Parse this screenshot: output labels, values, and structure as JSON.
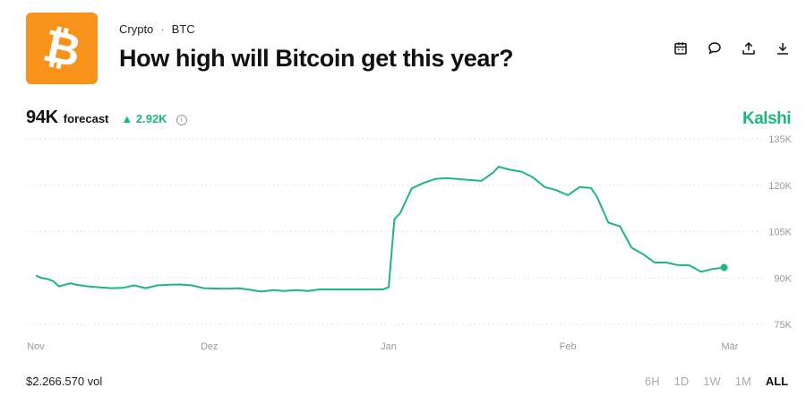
{
  "header": {
    "category": "Crypto",
    "separator": "·",
    "ticker": "BTC",
    "title": "How high will Bitcoin get this year?",
    "logo_glyph": "₿",
    "logo_color": "#F7931A"
  },
  "toolbar": {
    "icons": [
      "calendar-icon",
      "comment-icon",
      "share-icon",
      "download-icon"
    ]
  },
  "forecast": {
    "value": "94K",
    "label": "forecast",
    "delta_arrow": "▲",
    "delta": "2.92K",
    "info_glyph": "i"
  },
  "brand": "Kalshi",
  "accent_color": "#1DB879",
  "footer": {
    "volume": "$2.266.570 vol",
    "ranges": [
      "6H",
      "1D",
      "1W",
      "1M",
      "ALL"
    ],
    "active_range": "ALL"
  },
  "chart_data": {
    "type": "line",
    "title": "",
    "xlabel": "",
    "ylabel": "",
    "y_axis_side": "right",
    "grid": true,
    "grid_style": "dotted",
    "ylim": [
      75000,
      135000
    ],
    "yticks": [
      75000,
      90000,
      105000,
      120000,
      135000
    ],
    "ytick_labels": [
      "75K",
      "90K",
      "105K",
      "120K",
      "135K"
    ],
    "xlim": [
      "2024-11-01",
      "2025-03-01"
    ],
    "xticks": [
      "2024-11-01",
      "2024-12-01",
      "2025-01-01",
      "2025-02-01",
      "2025-03-01"
    ],
    "xtick_labels": [
      "Nov",
      "Dez",
      "Jan",
      "Feb",
      "Mär"
    ],
    "series": [
      {
        "color": "#1DB879",
        "points": [
          [
            "2024-11-01",
            90800
          ],
          [
            "2024-11-02",
            90000
          ],
          [
            "2024-11-03",
            89700
          ],
          [
            "2024-11-04",
            89000
          ],
          [
            "2024-11-05",
            87300
          ],
          [
            "2024-11-06",
            87800
          ],
          [
            "2024-11-07",
            88300
          ],
          [
            "2024-11-08",
            87800
          ],
          [
            "2024-11-10",
            87300
          ],
          [
            "2024-11-12",
            87000
          ],
          [
            "2024-11-14",
            86700
          ],
          [
            "2024-11-16",
            86800
          ],
          [
            "2024-11-18",
            87600
          ],
          [
            "2024-11-20",
            86700
          ],
          [
            "2024-11-22",
            87600
          ],
          [
            "2024-11-24",
            87800
          ],
          [
            "2024-11-26",
            87900
          ],
          [
            "2024-11-28",
            87600
          ],
          [
            "2024-11-30",
            86700
          ],
          [
            "2024-12-02",
            86600
          ],
          [
            "2024-12-04",
            86500
          ],
          [
            "2024-12-06",
            86700
          ],
          [
            "2024-12-08",
            86200
          ],
          [
            "2024-12-10",
            85600
          ],
          [
            "2024-12-12",
            86100
          ],
          [
            "2024-12-14",
            85800
          ],
          [
            "2024-12-16",
            86100
          ],
          [
            "2024-12-18",
            85800
          ],
          [
            "2024-12-20",
            86300
          ],
          [
            "2024-12-22",
            86300
          ],
          [
            "2024-12-24",
            86300
          ],
          [
            "2024-12-26",
            86300
          ],
          [
            "2024-12-28",
            86300
          ],
          [
            "2024-12-30",
            86300
          ],
          [
            "2024-12-31",
            86300
          ],
          [
            "2025-01-01",
            87000
          ],
          [
            "2025-01-02",
            109000
          ],
          [
            "2025-01-03",
            111000
          ],
          [
            "2025-01-04",
            115000
          ],
          [
            "2025-01-05",
            119000
          ],
          [
            "2025-01-07",
            120700
          ],
          [
            "2025-01-09",
            122000
          ],
          [
            "2025-01-11",
            122300
          ],
          [
            "2025-01-13",
            122000
          ],
          [
            "2025-01-15",
            121700
          ],
          [
            "2025-01-17",
            121400
          ],
          [
            "2025-01-19",
            124000
          ],
          [
            "2025-01-20",
            126000
          ],
          [
            "2025-01-22",
            125000
          ],
          [
            "2025-01-24",
            124400
          ],
          [
            "2025-01-26",
            122500
          ],
          [
            "2025-01-28",
            119400
          ],
          [
            "2025-01-30",
            118400
          ],
          [
            "2025-02-01",
            116800
          ],
          [
            "2025-02-03",
            119400
          ],
          [
            "2025-02-05",
            119100
          ],
          [
            "2025-02-06",
            116300
          ],
          [
            "2025-02-08",
            107900
          ],
          [
            "2025-02-10",
            106700
          ],
          [
            "2025-02-12",
            99800
          ],
          [
            "2025-02-14",
            97700
          ],
          [
            "2025-02-16",
            95000
          ],
          [
            "2025-02-18",
            95000
          ],
          [
            "2025-02-20",
            94200
          ],
          [
            "2025-02-22",
            94100
          ],
          [
            "2025-02-24",
            92000
          ],
          [
            "2025-02-26",
            92900
          ],
          [
            "2025-02-28",
            93400
          ]
        ]
      }
    ]
  }
}
